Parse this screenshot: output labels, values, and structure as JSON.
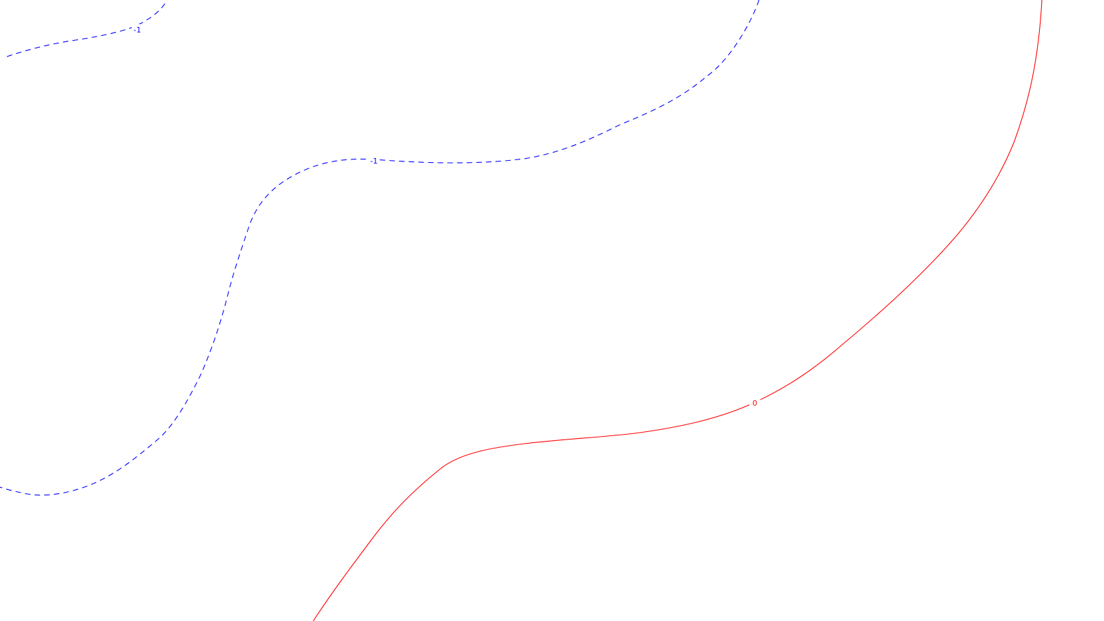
{
  "chart_data": {
    "type": "contour",
    "title": "",
    "xlabel": "",
    "ylabel": "",
    "axes_visible": false,
    "grid": false,
    "legend": "none",
    "levels": [
      {
        "value": -1,
        "color": "#0000ff",
        "style": "dashed",
        "label": "-1",
        "segments": 2
      },
      {
        "value": 0,
        "color": "#ff0000",
        "style": "solid",
        "label": "0",
        "segments": 1
      }
    ]
  }
}
